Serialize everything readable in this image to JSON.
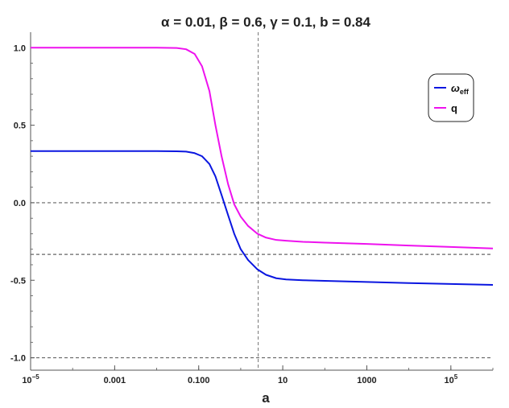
{
  "chart_data": {
    "type": "line",
    "title": "α = 0.01, β = 0.6, γ = 0.1, b = 0.84",
    "xlabel": "a",
    "ylabel": "",
    "xscale": "log",
    "xlim": [
      1e-05,
      1000000
    ],
    "ylim": [
      -1.08,
      1.1
    ],
    "x_ticks": [
      {
        "value": 1e-05,
        "label": "10",
        "sup": "−5"
      },
      {
        "value": 0.001,
        "label": "0.001",
        "sup": ""
      },
      {
        "value": 0.1,
        "label": "0.100",
        "sup": ""
      },
      {
        "value": 10,
        "label": "10",
        "sup": ""
      },
      {
        "value": 1000,
        "label": "1000",
        "sup": ""
      },
      {
        "value": 100000,
        "label": "10",
        "sup": "5"
      }
    ],
    "y_ticks": [
      {
        "value": 1.0,
        "label": "1.0"
      },
      {
        "value": 0.5,
        "label": "0.5"
      },
      {
        "value": 0.0,
        "label": "0.0"
      },
      {
        "value": -0.5,
        "label": "-0.5"
      },
      {
        "value": -1.0,
        "label": "-1.0"
      }
    ],
    "reference_lines": {
      "horizontal": [
        0.0,
        -0.3333,
        -1.0
      ],
      "vertical": [
        2.6
      ]
    },
    "series": [
      {
        "name": "ω",
        "name_sub": "eff",
        "color": "#0a16e0",
        "points": [
          [
            1e-05,
            0.333
          ],
          [
            0.001,
            0.333
          ],
          [
            0.01,
            0.333
          ],
          [
            0.03,
            0.332
          ],
          [
            0.05,
            0.33
          ],
          [
            0.08,
            0.32
          ],
          [
            0.12,
            0.3
          ],
          [
            0.18,
            0.25
          ],
          [
            0.25,
            0.17
          ],
          [
            0.35,
            0.05
          ],
          [
            0.5,
            -0.08
          ],
          [
            0.7,
            -0.2
          ],
          [
            1.0,
            -0.3
          ],
          [
            1.5,
            -0.37
          ],
          [
            2.5,
            -0.43
          ],
          [
            4,
            -0.465
          ],
          [
            7,
            -0.487
          ],
          [
            12,
            -0.495
          ],
          [
            30,
            -0.5
          ],
          [
            100,
            -0.504
          ],
          [
            1000,
            -0.511
          ],
          [
            10000,
            -0.518
          ],
          [
            100000,
            -0.524
          ],
          [
            1000000,
            -0.53
          ]
        ]
      },
      {
        "name": "q",
        "name_sub": "",
        "color": "#ee12ee",
        "points": [
          [
            1e-05,
            1.0
          ],
          [
            0.001,
            1.0
          ],
          [
            0.01,
            1.0
          ],
          [
            0.03,
            0.998
          ],
          [
            0.05,
            0.99
          ],
          [
            0.08,
            0.96
          ],
          [
            0.12,
            0.88
          ],
          [
            0.18,
            0.72
          ],
          [
            0.25,
            0.5
          ],
          [
            0.35,
            0.3
          ],
          [
            0.5,
            0.12
          ],
          [
            0.7,
            -0.01
          ],
          [
            1.0,
            -0.09
          ],
          [
            1.5,
            -0.15
          ],
          [
            2.5,
            -0.2
          ],
          [
            4,
            -0.225
          ],
          [
            7,
            -0.24
          ],
          [
            12,
            -0.245
          ],
          [
            30,
            -0.252
          ],
          [
            100,
            -0.257
          ],
          [
            1000,
            -0.266
          ],
          [
            10000,
            -0.276
          ],
          [
            100000,
            -0.285
          ],
          [
            1000000,
            -0.295
          ]
        ]
      }
    ],
    "legend": "top-right"
  }
}
